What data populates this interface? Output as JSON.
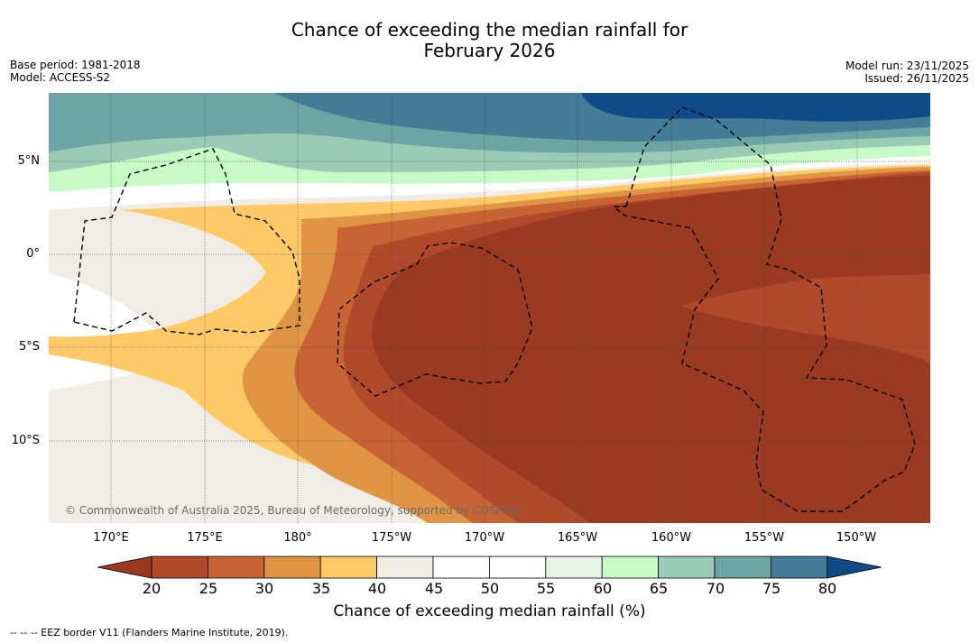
{
  "title": {
    "line1": "Chance of exceeding the median rainfall for",
    "line2": "February 2026"
  },
  "meta_left": {
    "base_period": "Base period: 1981-2018",
    "model": "Model: ACCESS-S2"
  },
  "meta_right": {
    "model_run": "Model run: 23/11/2025",
    "issued": "Issued: 26/11/2025"
  },
  "map": {
    "lat_labels": [
      "5°N",
      "0°",
      "5°S",
      "10°S"
    ],
    "lon_labels": [
      "170°E",
      "175°E",
      "180°",
      "175°W",
      "170°W",
      "165°W",
      "160°W",
      "155°W",
      "150°W"
    ],
    "copyright": "© Commonwealth of Australia 2025, Bureau of Meteorology, supported by COSPPac"
  },
  "colorbar": {
    "ticks": [
      "20",
      "25",
      "30",
      "35",
      "40",
      "45",
      "50",
      "55",
      "60",
      "65",
      "70",
      "75",
      "80"
    ],
    "colors": [
      "#9a3a22",
      "#b14a2b",
      "#c86433",
      "#e09545",
      "#fec966",
      "#f1ede6",
      "#ffffff",
      "#ffffff",
      "#e6f4e6",
      "#c6fac6",
      "#98ccb4",
      "#6ea4a4",
      "#447c98",
      "#114a88"
    ],
    "label": "Chance of exceeding median rainfall (%)"
  },
  "footer": {
    "eez": "--  --  -- EEZ border V11 (Flanders Marine Institute, 2019)."
  }
}
